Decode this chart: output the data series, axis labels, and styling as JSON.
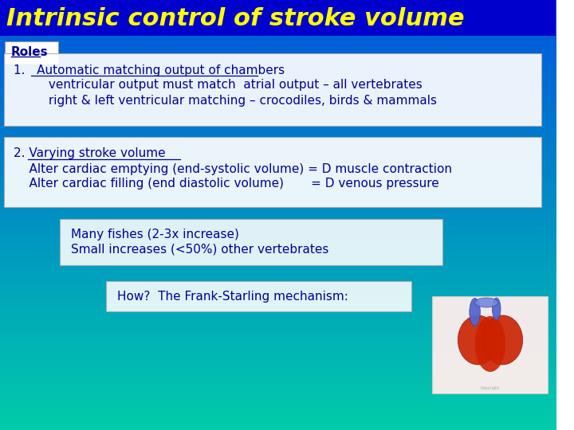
{
  "title": "Intrinsic control of stroke volume",
  "title_color": "#FFFF00",
  "title_bg": "#0000CC",
  "title_fontsize": 22,
  "title_fontstyle": "italic",
  "title_fontfamily": "sans-serif",
  "bg_top": "#0055DD",
  "bg_bottom": "#00CCAA",
  "roles_label": "Roles",
  "box1_lines": [
    "1.   Automatic matching output of chambers",
    "         ventricular output must match  atrial output – all vertebrates",
    "         right & left ventricular matching – crocodiles, birds & mammals"
  ],
  "box2_lines": [
    "2. Varying stroke volume",
    "    Alter cardiac emptying (end-systolic volume) = D muscle contraction",
    "    Alter cardiac filling (end diastolic volume)       = D venous pressure"
  ],
  "box3_lines": [
    "Many fishes (2-3x increase)",
    "Small increases (<50%) other vertebrates"
  ],
  "box4_line": "How?  The Frank-Starling mechanism:",
  "text_color_dark": "#000099",
  "box_bg": "#FFFFFF",
  "fontsize_main": 11,
  "fontsize_roles": 11
}
